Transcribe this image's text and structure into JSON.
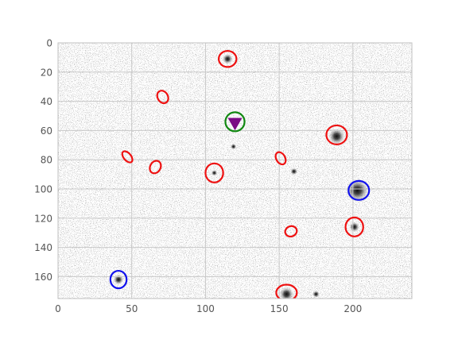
{
  "chart_data": {
    "type": "scatter",
    "title": "",
    "xlabel": "",
    "ylabel": "",
    "xlim": [
      0,
      240
    ],
    "ylim": [
      175,
      0
    ],
    "y_inverted": true,
    "grid": true,
    "background": "noisy grayscale image",
    "x_ticks": [
      0,
      50,
      100,
      150,
      200
    ],
    "y_ticks": [
      0,
      20,
      40,
      60,
      80,
      100,
      120,
      140,
      160
    ],
    "x_tick_labels": [
      "0",
      "50",
      "100",
      "150",
      "200"
    ],
    "y_tick_labels": [
      "0",
      "20",
      "40",
      "60",
      "80",
      "100",
      "120",
      "140",
      "160"
    ],
    "colors": {
      "red": "#ee1111",
      "blue": "#1111ee",
      "green": "#118811",
      "purple": "#7a0a84",
      "grid": "#c8c8c8",
      "frame": "#bfbfbf"
    },
    "blobs": [
      {
        "x": 115,
        "y": 11,
        "s": 1.0
      },
      {
        "x": 189,
        "y": 64,
        "s": 1.6
      },
      {
        "x": 203,
        "y": 101,
        "s": 2.2
      },
      {
        "x": 201,
        "y": 126,
        "s": 1.0
      },
      {
        "x": 155,
        "y": 172,
        "s": 1.4
      },
      {
        "x": 175,
        "y": 172,
        "s": 0.7
      },
      {
        "x": 41,
        "y": 162,
        "s": 1.0
      },
      {
        "x": 160,
        "y": 88,
        "s": 0.7
      },
      {
        "x": 119,
        "y": 71,
        "s": 0.6
      },
      {
        "x": 106,
        "y": 89,
        "s": 0.6
      }
    ],
    "series": [
      {
        "type": "ellipse-markers",
        "color": "red",
        "points": [
          {
            "x": 115,
            "y": 11,
            "rx": 6,
            "ry": 5.5,
            "angle": 0
          },
          {
            "x": 71,
            "y": 37,
            "rx": 3.5,
            "ry": 4.5,
            "angle": -30
          },
          {
            "x": 47,
            "y": 78,
            "rx": 2.5,
            "ry": 4.5,
            "angle": -40
          },
          {
            "x": 66,
            "y": 85,
            "rx": 3.5,
            "ry": 4.5,
            "angle": 30
          },
          {
            "x": 106,
            "y": 89,
            "rx": 6,
            "ry": 6.5,
            "angle": 0
          },
          {
            "x": 151,
            "y": 79,
            "rx": 3,
            "ry": 4.5,
            "angle": -30
          },
          {
            "x": 189,
            "y": 63,
            "rx": 7,
            "ry": 6.5,
            "angle": 0
          },
          {
            "x": 201,
            "y": 126,
            "rx": 6,
            "ry": 6.5,
            "angle": 0
          },
          {
            "x": 158,
            "y": 129,
            "rx": 4,
            "ry": 3.5,
            "angle": -20
          },
          {
            "x": 155,
            "y": 171,
            "rx": 7,
            "ry": 5.5,
            "angle": 0
          }
        ]
      },
      {
        "type": "ellipse-markers",
        "color": "blue",
        "points": [
          {
            "x": 204,
            "y": 101,
            "rx": 7,
            "ry": 6.5,
            "angle": 0
          },
          {
            "x": 41,
            "y": 162,
            "rx": 5.5,
            "ry": 6,
            "angle": 0
          }
        ]
      },
      {
        "type": "ellipse-markers",
        "color": "green",
        "points": [
          {
            "x": 120,
            "y": 54,
            "rx": 6.5,
            "ry": 6.5,
            "angle": 0
          }
        ]
      },
      {
        "type": "triangle-down-markers",
        "color": "purple",
        "points": [
          {
            "x": 120,
            "y": 55
          }
        ]
      }
    ]
  }
}
